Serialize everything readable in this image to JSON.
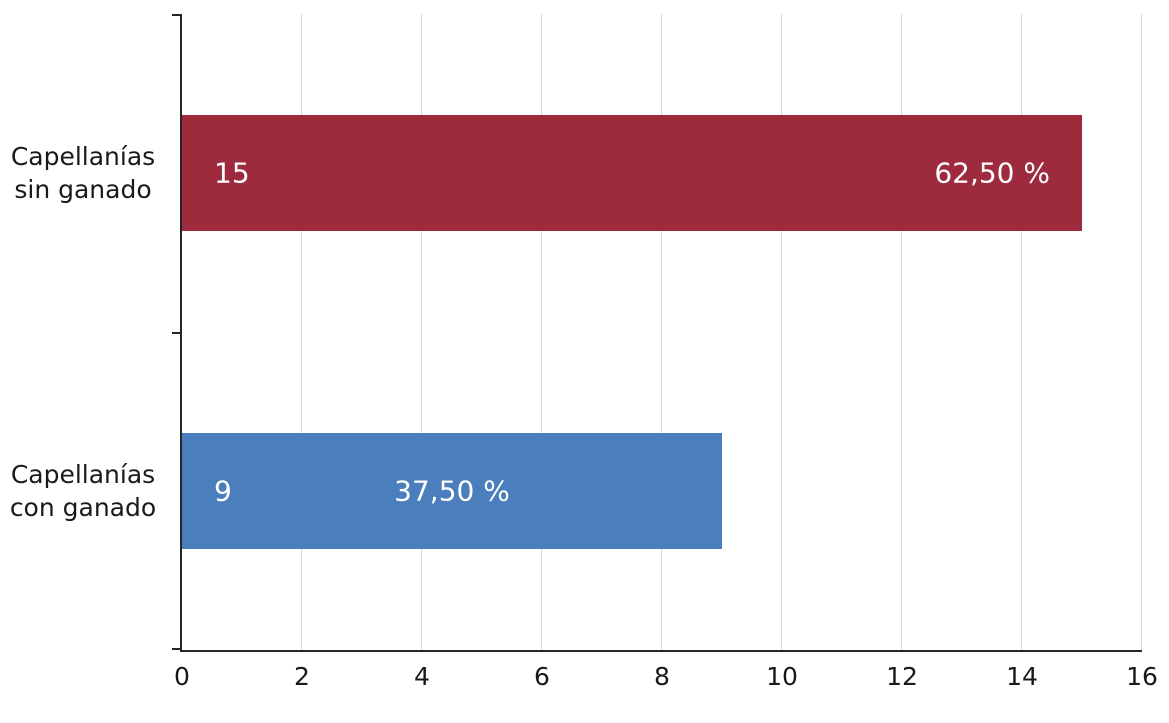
{
  "chart_data": {
    "type": "bar",
    "orientation": "horizontal",
    "title": "",
    "categories": [
      "Capellanías sin ganado",
      "Capellanías con ganado"
    ],
    "values": [
      15,
      9
    ],
    "value_labels": [
      "15",
      "9"
    ],
    "pct_labels": [
      "62,50 %",
      "37,50 %"
    ],
    "pct_label_align": [
      "end",
      "center"
    ],
    "bar_colors": [
      "#9e2b3d",
      "#4a7ebc"
    ],
    "xlim": [
      0,
      16
    ],
    "xticks": [
      0,
      2,
      4,
      6,
      8,
      10,
      12,
      14,
      16
    ],
    "grid": "vertical",
    "legend": "none",
    "colors": {
      "gridline": "#d9d9d9",
      "axis": "#262626",
      "text": "#1a1a1a",
      "bar_label_text": "#ffffff",
      "background": "#ffffff"
    }
  }
}
